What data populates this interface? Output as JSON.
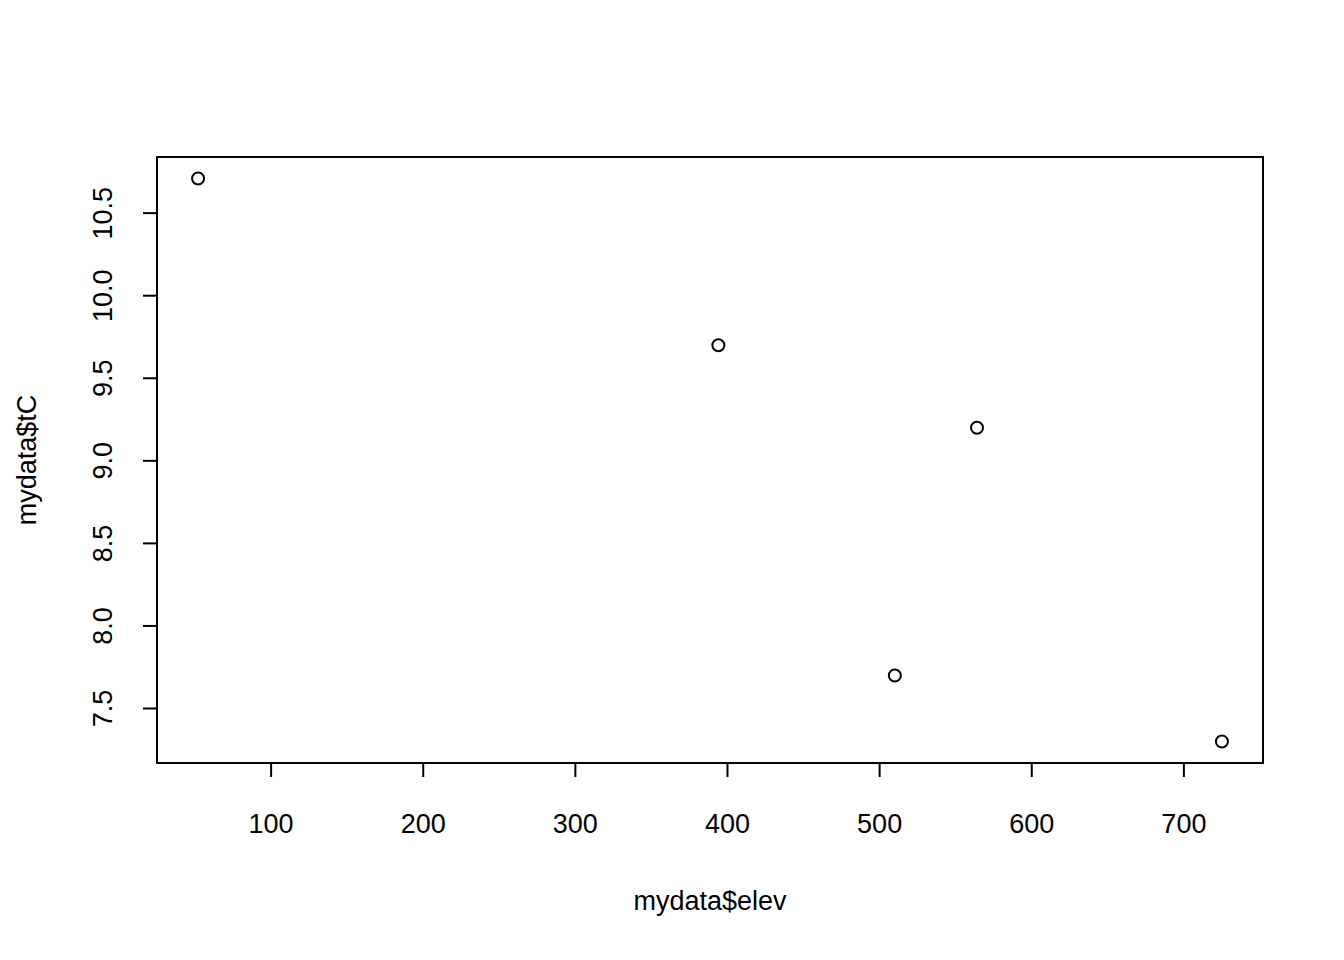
{
  "chart_data": {
    "type": "scatter",
    "x_label": "mydata$elev",
    "y_label": "mydata$tC",
    "x": [
      52,
      394,
      564,
      510,
      725
    ],
    "values": [
      10.71,
      9.7,
      9.2,
      7.7,
      7.3
    ],
    "color": "#000000",
    "marker": "open-circle",
    "xlim": [
      25,
      752
    ],
    "ylim": [
      7.17,
      10.84
    ],
    "xticks": [
      100,
      200,
      300,
      400,
      500,
      600,
      700
    ],
    "yticks": [
      7.5,
      8.0,
      8.5,
      9.0,
      9.5,
      10.0,
      10.5
    ],
    "grid": false
  }
}
